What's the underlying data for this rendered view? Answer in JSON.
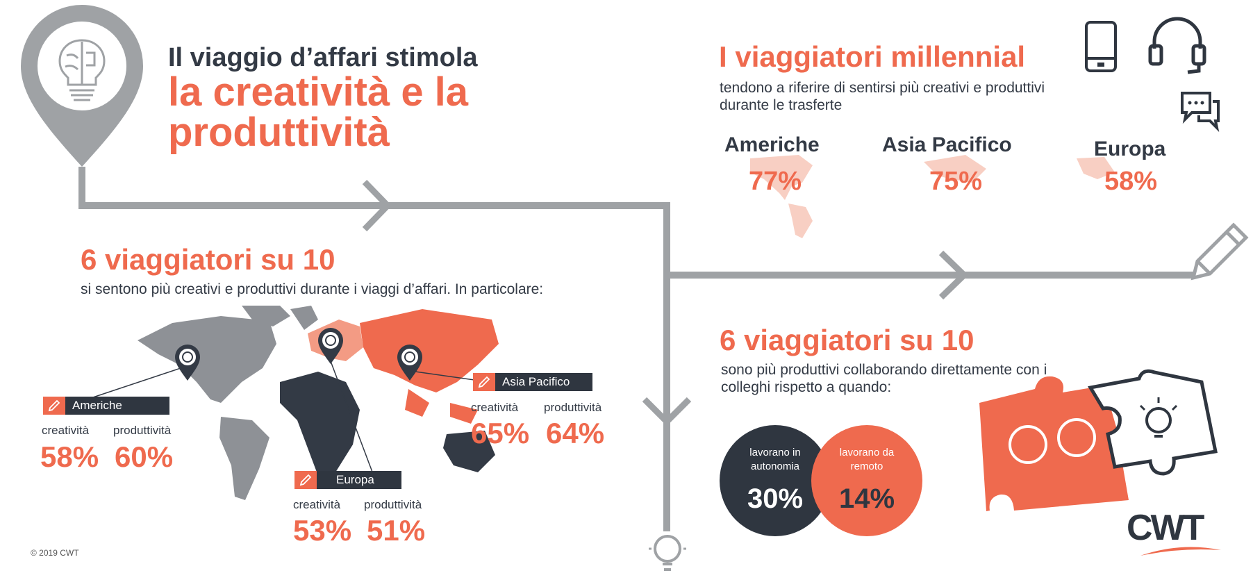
{
  "header": {
    "line1": "Il viaggio d’affari stimola",
    "line2": "la creatività e la produttività"
  },
  "millennial": {
    "title": "I viaggiatori millennial",
    "subtitle": "tendono a riferire di sentirsi più creativi e produttivi durante le trasferte",
    "regions": [
      {
        "name": "Americhe",
        "value": "77%"
      },
      {
        "name": "Asia Pacifico",
        "value": "75%"
      },
      {
        "name": "Europa",
        "value": "58%"
      }
    ]
  },
  "six_ten_left": {
    "title": "6 viaggiatori su 10",
    "subtitle": "si sentono più creativi e produttivi durante i viaggi d’affari. In particolare:"
  },
  "regions_map": {
    "americhe": {
      "tag": "Americhe",
      "label_a": "creatività",
      "label_b": "produttività",
      "value_a": "58%",
      "value_b": "60%"
    },
    "europa": {
      "tag": "Europa",
      "label_a": "creatività",
      "label_b": "produttività",
      "value_a": "53%",
      "value_b": "51%"
    },
    "asia": {
      "tag": "Asia Pacifico",
      "label_a": "creatività",
      "label_b": "produttività",
      "value_a": "65%",
      "value_b": "64%"
    }
  },
  "six_ten_right": {
    "title": "6 viaggiatori su 10",
    "subtitle": "sono più produttivi collaborando direttamente con i colleghi rispetto a quando:",
    "circle_dark": {
      "label": "lavorano in autonomia",
      "value": "30%"
    },
    "circle_orange": {
      "label": "lavorano da remoto",
      "value": "14%"
    }
  },
  "footer": {
    "copyright": "© 2019 CWT",
    "logo": "CWT"
  },
  "colors": {
    "accent": "#ef6a4e",
    "dark": "#2f3640",
    "gray": "#9fa2a5",
    "light_accent": "#f8b8a8"
  },
  "icons": [
    "brain-bulb-pin-icon",
    "phone-icon",
    "headphones-icon",
    "chat-icon",
    "pencil-icon",
    "lightbulb-icon",
    "puzzle-icon",
    "map-pin-icon"
  ]
}
